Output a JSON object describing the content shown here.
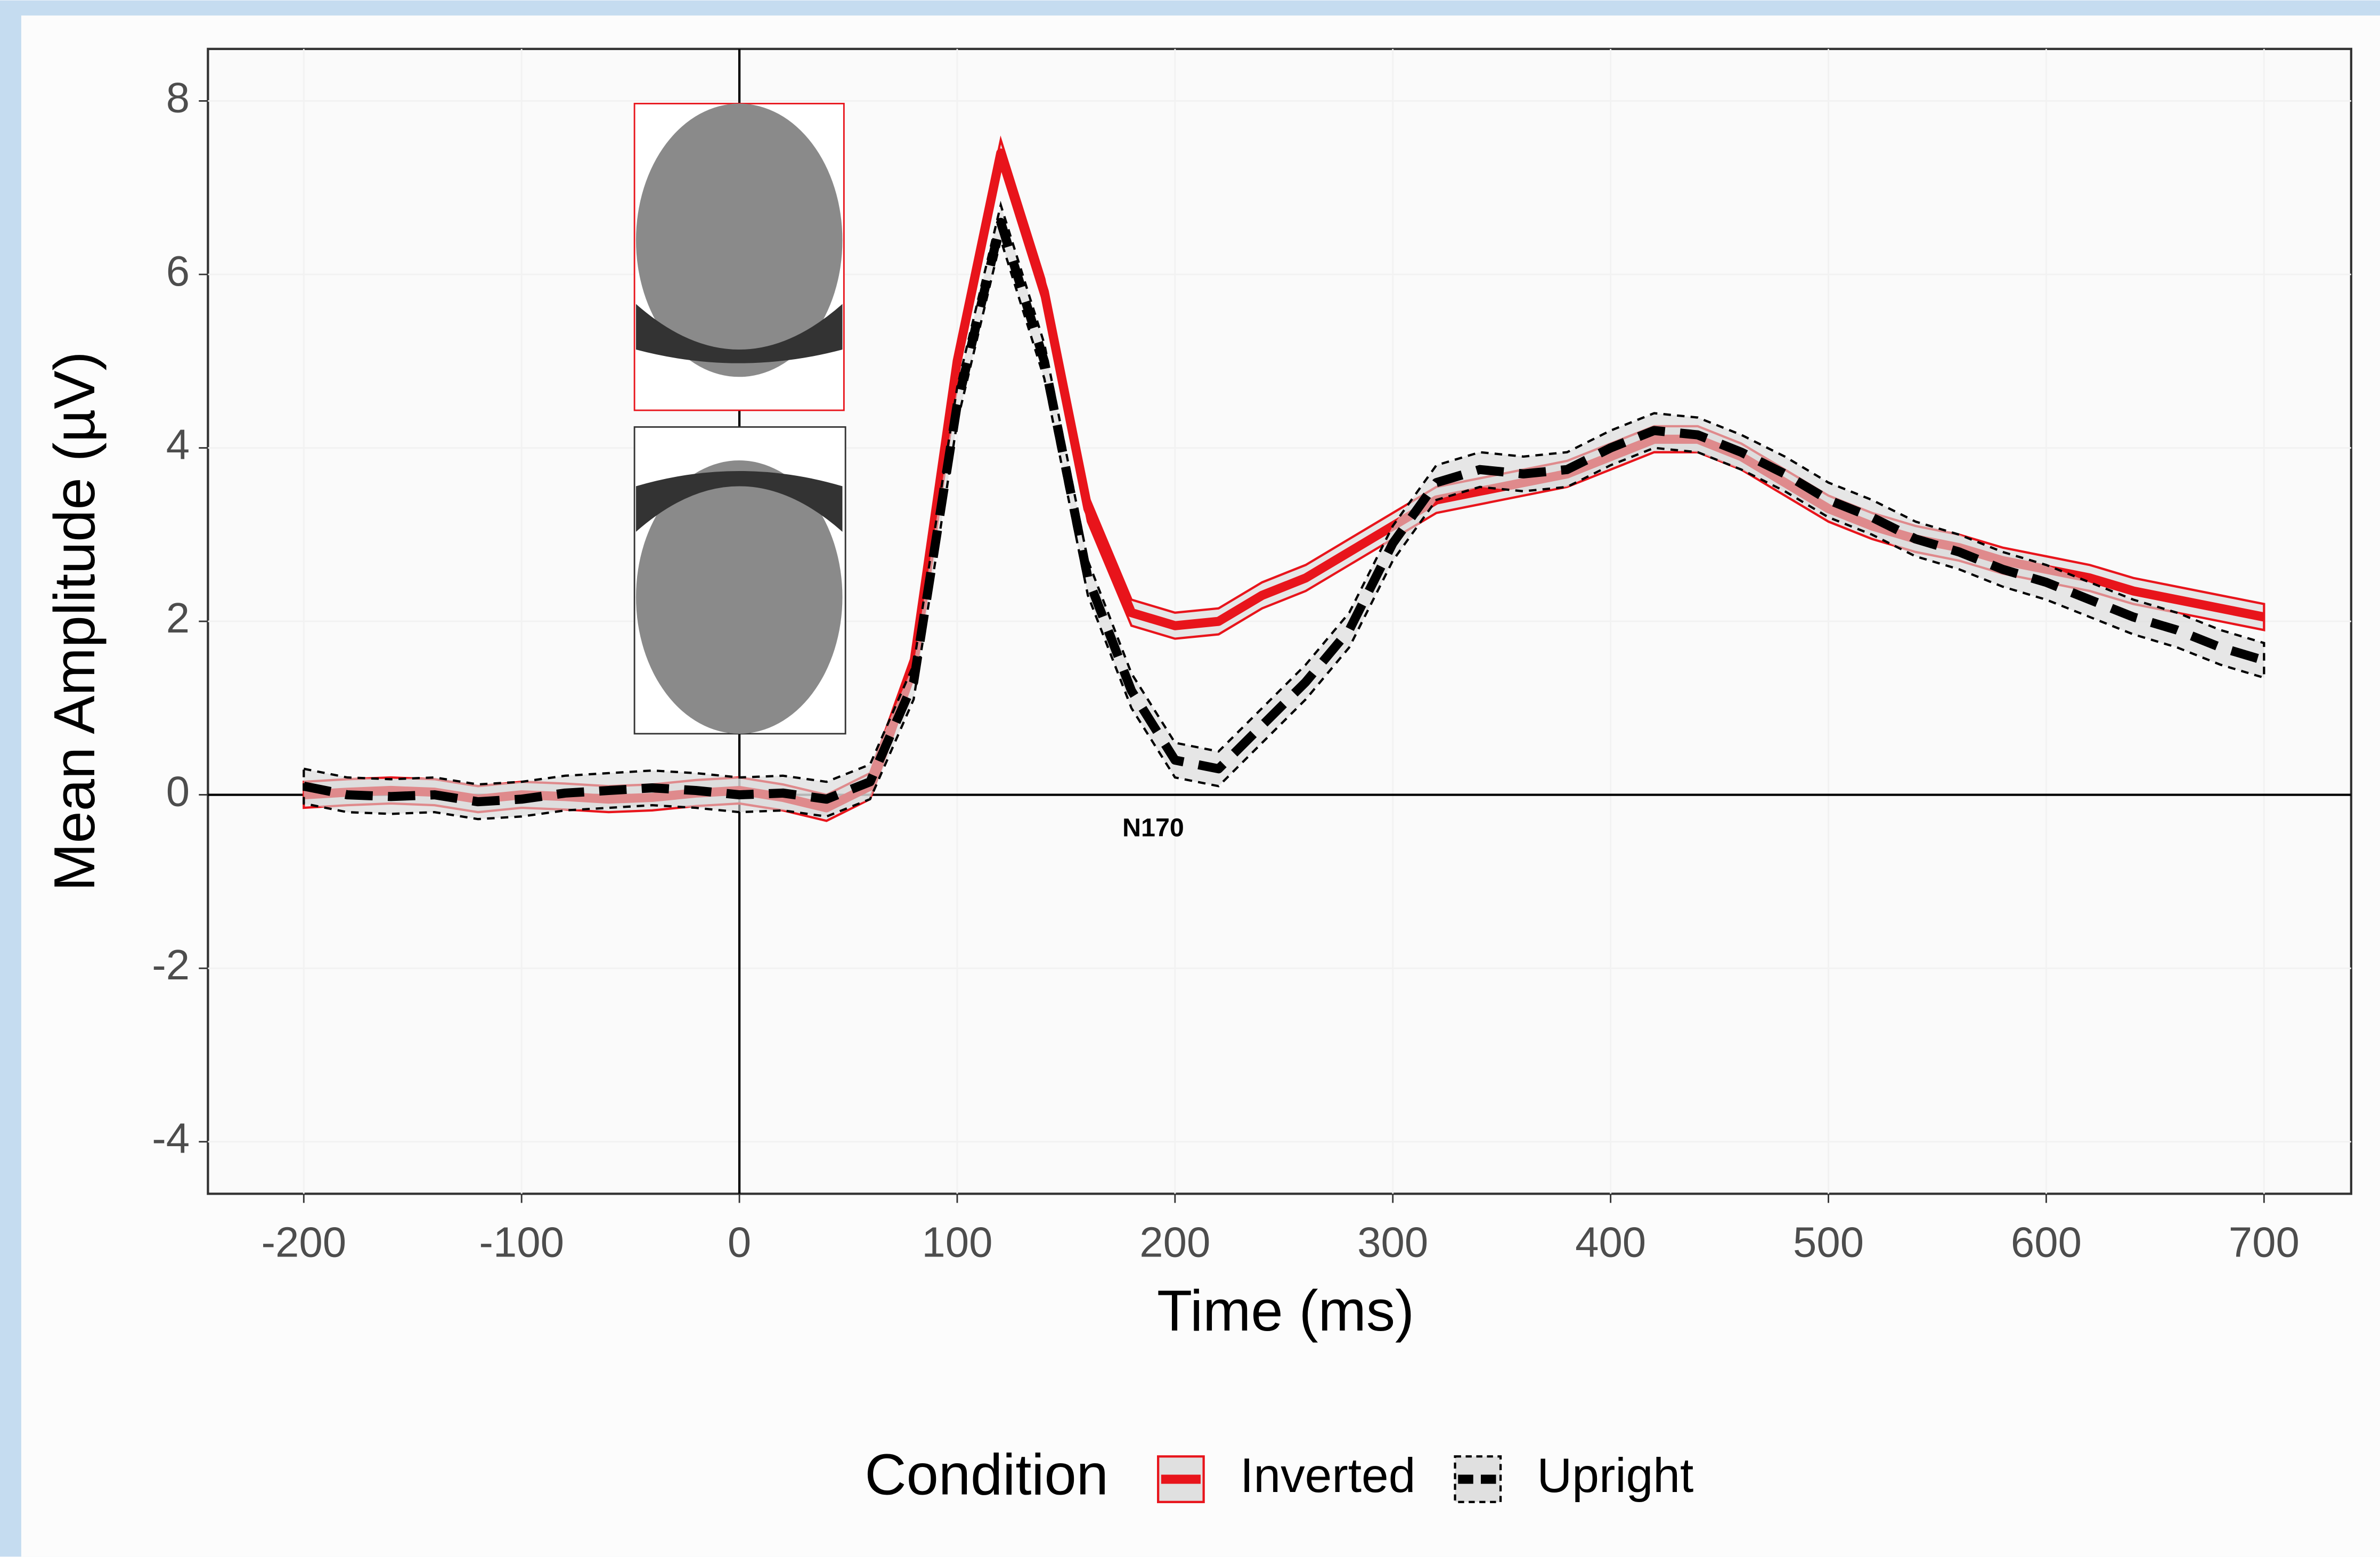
{
  "chart_data": {
    "type": "line",
    "x_label": "Time (ms)",
    "y_label": "Mean Amplitude (µV)",
    "x": [
      -200,
      -180,
      -160,
      -140,
      -120,
      -100,
      -80,
      -60,
      -40,
      -20,
      0,
      20,
      40,
      60,
      80,
      100,
      120,
      140,
      160,
      180,
      200,
      220,
      240,
      260,
      280,
      300,
      320,
      340,
      360,
      380,
      400,
      420,
      440,
      460,
      480,
      500,
      520,
      540,
      560,
      580,
      600,
      620,
      640,
      660,
      680,
      700
    ],
    "series": [
      {
        "name": "Inverted",
        "color": "#e8141b",
        "dash": false,
        "se": 0.15,
        "values": [
          0,
          0.03,
          0.05,
          0.03,
          -0.05,
          0,
          -0.02,
          -0.05,
          -0.03,
          0.02,
          0.05,
          -0.03,
          -0.15,
          0.1,
          1.5,
          5.0,
          7.4,
          5.8,
          3.3,
          2.1,
          1.95,
          2.0,
          2.3,
          2.5,
          2.8,
          3.1,
          3.4,
          3.5,
          3.6,
          3.7,
          3.9,
          4.1,
          4.1,
          3.9,
          3.6,
          3.3,
          3.1,
          2.95,
          2.85,
          2.7,
          2.6,
          2.5,
          2.35,
          2.25,
          2.15,
          2.05
        ]
      },
      {
        "name": "Upright",
        "color": "#000000",
        "dash": true,
        "se": 0.2,
        "values": [
          0.1,
          0,
          -0.02,
          0,
          -0.08,
          -0.05,
          0.02,
          0.05,
          0.08,
          0.05,
          0,
          0.02,
          -0.05,
          0.15,
          1.3,
          4.5,
          6.6,
          5.0,
          2.5,
          1.2,
          0.4,
          0.3,
          0.8,
          1.3,
          1.9,
          2.9,
          3.6,
          3.75,
          3.7,
          3.75,
          4.0,
          4.2,
          4.15,
          3.95,
          3.7,
          3.4,
          3.2,
          2.95,
          2.8,
          2.6,
          2.45,
          2.25,
          2.05,
          1.9,
          1.7,
          1.55
        ]
      }
    ],
    "xlim": [
      -244,
      740
    ],
    "ylim": [
      -4.6,
      8.6
    ],
    "xticks": [
      -200,
      -100,
      0,
      100,
      200,
      300,
      400,
      500,
      600,
      700
    ],
    "yticks": [
      -4,
      -2,
      0,
      2,
      4,
      6,
      8
    ],
    "annotation": {
      "text": "N170",
      "x": 190,
      "y": -0.4
    },
    "legend_title": "Condition",
    "legend": "bottom"
  }
}
